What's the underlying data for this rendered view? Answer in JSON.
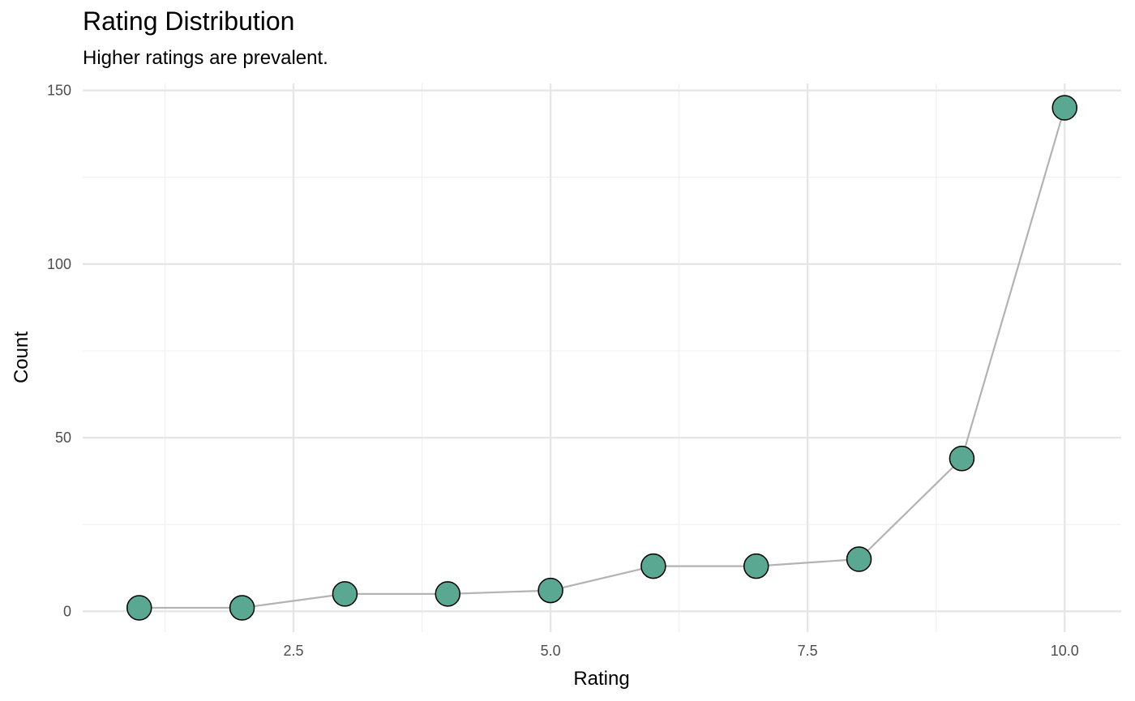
{
  "chart_data": {
    "type": "line",
    "title": "Rating Distribution",
    "subtitle": "Higher ratings are prevalent.",
    "xlabel": "Rating",
    "ylabel": "Count",
    "x": [
      1,
      2,
      3,
      4,
      5,
      6,
      7,
      8,
      9,
      10
    ],
    "y": [
      1,
      1,
      5,
      5,
      6,
      13,
      13,
      15,
      44,
      145
    ],
    "xlim": [
      0.45,
      10.55
    ],
    "ylim": [
      -6,
      152
    ],
    "x_major_ticks": [
      2.5,
      5.0,
      7.5,
      10.0
    ],
    "x_tick_labels": [
      "2.5",
      "5.0",
      "7.5",
      "10.0"
    ],
    "x_minor_ticks": [
      1.25,
      3.75,
      6.25,
      8.75
    ],
    "y_major_ticks": [
      0,
      50,
      100,
      150
    ],
    "y_tick_labels": [
      "0",
      "50",
      "100",
      "150"
    ],
    "y_minor_ticks": [
      25,
      75,
      125
    ],
    "grid": true,
    "legend": "none",
    "colors": {
      "point_fill": "#5aa891",
      "point_stroke": "#000000",
      "line": "#b3b3b3",
      "grid_major": "#e6e6e6",
      "grid_minor": "#f0f0f0"
    }
  }
}
